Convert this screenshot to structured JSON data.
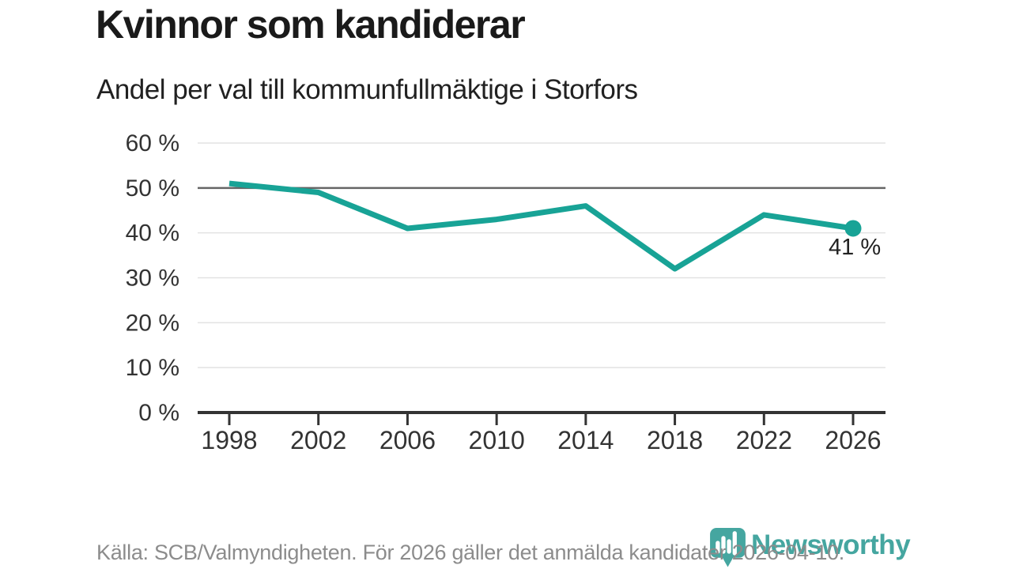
{
  "header": {
    "title": "Kvinnor som kandiderar",
    "subtitle": "Andel per val till kommunfullmäktige i Storfors"
  },
  "chart_data": {
    "type": "line",
    "title": "Kvinnor som kandiderar",
    "subtitle": "Andel per val till kommunfullmäktige i Storfors",
    "x": [
      "1998",
      "2002",
      "2006",
      "2010",
      "2014",
      "2018",
      "2022",
      "2026"
    ],
    "values": [
      51,
      49,
      41,
      43,
      46,
      32,
      44,
      41
    ],
    "ylim": [
      0,
      60
    ],
    "yticks": [
      0,
      10,
      20,
      30,
      40,
      50,
      60
    ],
    "ytick_suffix": " %",
    "reference_line": 50,
    "grid": "horizontal",
    "legend": "none",
    "end_point_label": "41 %",
    "line_color": "#18a396",
    "grid_color": "#e2e2e2",
    "reference_line_color": "#666666",
    "axis_color": "#333333"
  },
  "footer": {
    "source": "Källa: SCB/Valmyndigheten. För 2026 gäller det anmälda kandidater 2026-04-10.",
    "logo_text": "Newsworthy",
    "logo_color": "#45a6a0"
  }
}
